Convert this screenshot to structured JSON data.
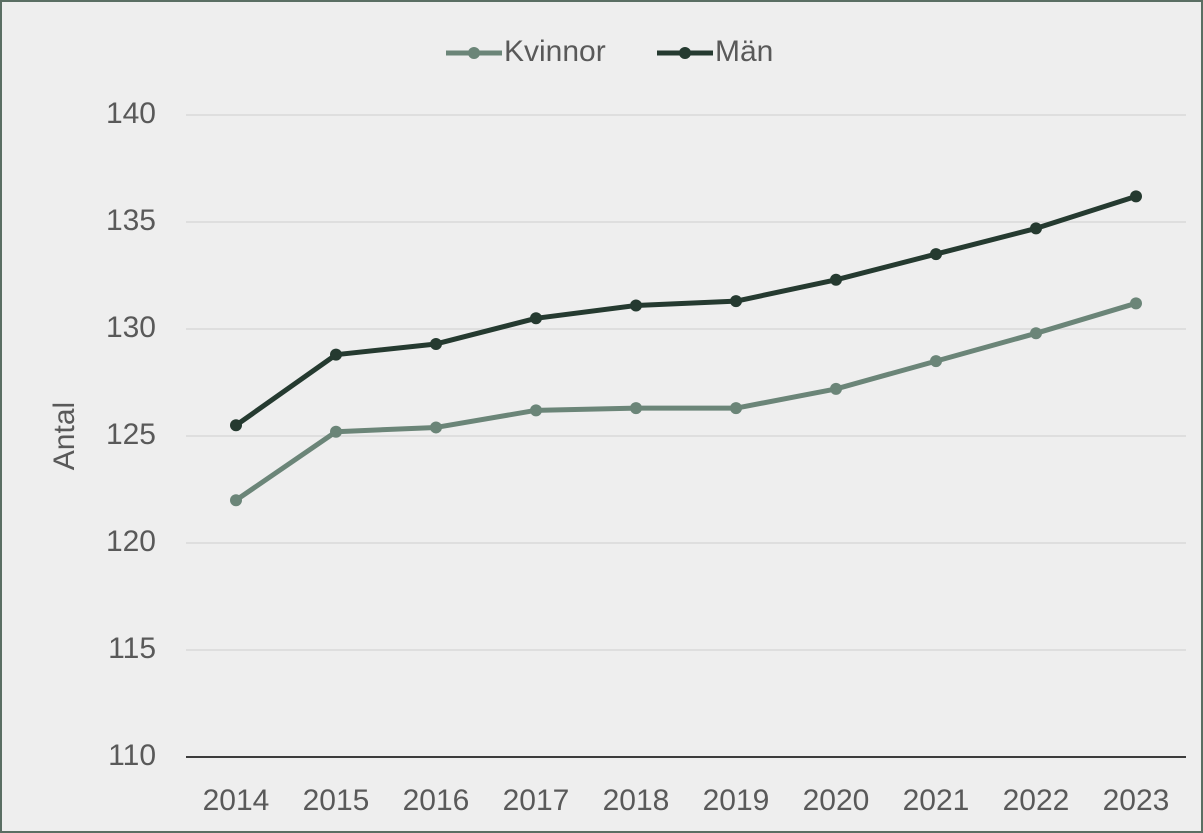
{
  "chart_data": {
    "type": "line",
    "categories": [
      "2014",
      "2015",
      "2016",
      "2017",
      "2018",
      "2019",
      "2020",
      "2021",
      "2022",
      "2023"
    ],
    "series": [
      {
        "name": "Kvinnor",
        "color": "#6b8578",
        "values": [
          122.0,
          125.2,
          125.4,
          126.2,
          126.3,
          126.3,
          127.2,
          128.5,
          129.8,
          131.2
        ]
      },
      {
        "name": "Män",
        "color": "#253a30",
        "values": [
          125.5,
          128.8,
          129.3,
          130.5,
          131.1,
          131.3,
          132.3,
          133.5,
          134.7,
          136.2
        ]
      }
    ],
    "y_label": "Antal",
    "ylim": [
      110,
      140
    ],
    "yticks": [
      110,
      115,
      120,
      125,
      130,
      135,
      140
    ],
    "grid": true,
    "legend": "top"
  }
}
